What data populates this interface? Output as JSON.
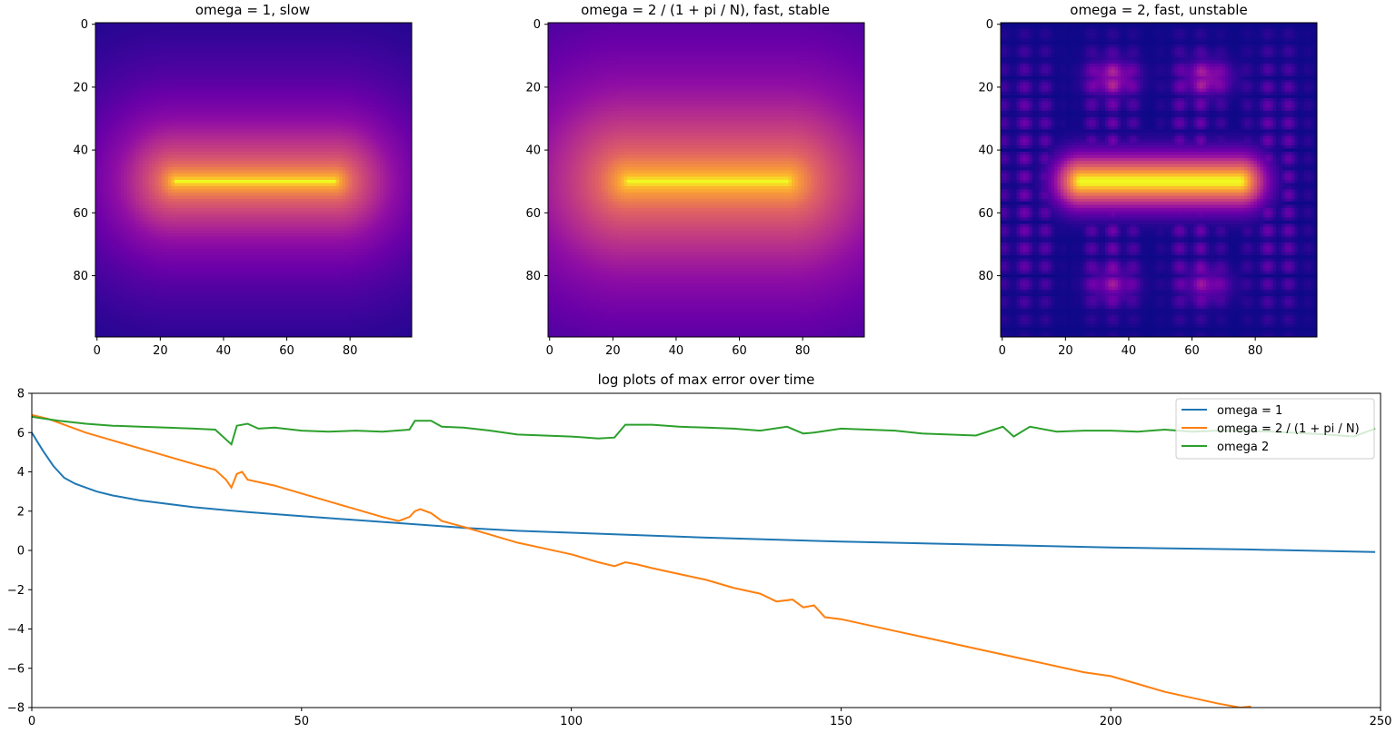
{
  "chart_data": [
    {
      "type": "heatmap",
      "title": "omega = 1, slow",
      "colormap": "plasma",
      "grid_size": 100,
      "xlim": [
        0,
        99
      ],
      "ylim": [
        99,
        0
      ],
      "x_ticks": [
        0,
        20,
        40,
        60,
        80
      ],
      "y_ticks": [
        0,
        20,
        40,
        60,
        80
      ],
      "source_row": 50,
      "source_cols": [
        25,
        75
      ],
      "pattern": "smooth",
      "spread": 15
    },
    {
      "type": "heatmap",
      "title": "omega = 2 / (1 + pi / N), fast, stable",
      "colormap": "plasma",
      "grid_size": 100,
      "xlim": [
        0,
        99
      ],
      "ylim": [
        99,
        0
      ],
      "x_ticks": [
        0,
        20,
        40,
        60,
        80
      ],
      "y_ticks": [
        0,
        20,
        40,
        60,
        80
      ],
      "source_row": 50,
      "source_cols": [
        25,
        75
      ],
      "pattern": "smooth",
      "spread": 24
    },
    {
      "type": "heatmap",
      "title": "omega = 2, fast, unstable",
      "colormap": "plasma",
      "grid_size": 100,
      "xlim": [
        0,
        99
      ],
      "ylim": [
        99,
        0
      ],
      "x_ticks": [
        0,
        20,
        40,
        60,
        80
      ],
      "y_ticks": [
        0,
        20,
        40,
        60,
        80
      ],
      "source_row": 50,
      "source_cols": [
        25,
        75
      ],
      "pattern": "oscillating",
      "spread": 6
    },
    {
      "type": "line",
      "title": "log plots of max error over time",
      "xlabel": "",
      "ylabel": "",
      "xlim": [
        0,
        250
      ],
      "ylim": [
        -8,
        8
      ],
      "x_ticks": [
        0,
        50,
        100,
        150,
        200,
        250
      ],
      "y_ticks": [
        -8,
        -6,
        -4,
        -2,
        0,
        2,
        4,
        6,
        8
      ],
      "legend_position": "top-right",
      "series": [
        {
          "name": "omega = 1",
          "color": "#1f77b4",
          "points": [
            [
              0,
              6.0
            ],
            [
              2,
              5.1
            ],
            [
              4,
              4.3
            ],
            [
              6,
              3.7
            ],
            [
              8,
              3.4
            ],
            [
              10,
              3.2
            ],
            [
              12,
              3.0
            ],
            [
              15,
              2.8
            ],
            [
              20,
              2.55
            ],
            [
              30,
              2.2
            ],
            [
              40,
              1.95
            ],
            [
              50,
              1.75
            ],
            [
              60,
              1.55
            ],
            [
              70,
              1.35
            ],
            [
              80,
              1.15
            ],
            [
              90,
              1.0
            ],
            [
              100,
              0.9
            ],
            [
              125,
              0.65
            ],
            [
              150,
              0.45
            ],
            [
              175,
              0.3
            ],
            [
              200,
              0.15
            ],
            [
              225,
              0.05
            ],
            [
              249,
              -0.08
            ]
          ]
        },
        {
          "name": "omega = 2 / (1 + pi / N)",
          "color": "#ff7f0e",
          "points": [
            [
              0,
              6.9
            ],
            [
              3,
              6.7
            ],
            [
              6,
              6.4
            ],
            [
              10,
              6.0
            ],
            [
              15,
              5.6
            ],
            [
              20,
              5.2
            ],
            [
              25,
              4.8
            ],
            [
              30,
              4.4
            ],
            [
              34,
              4.1
            ],
            [
              36,
              3.6
            ],
            [
              37,
              3.2
            ],
            [
              38,
              3.9
            ],
            [
              39,
              4.0
            ],
            [
              40,
              3.6
            ],
            [
              45,
              3.3
            ],
            [
              50,
              2.9
            ],
            [
              55,
              2.5
            ],
            [
              60,
              2.1
            ],
            [
              65,
              1.7
            ],
            [
              68,
              1.5
            ],
            [
              70,
              1.7
            ],
            [
              71,
              2.0
            ],
            [
              72,
              2.1
            ],
            [
              74,
              1.9
            ],
            [
              76,
              1.5
            ],
            [
              80,
              1.2
            ],
            [
              85,
              0.8
            ],
            [
              90,
              0.4
            ],
            [
              95,
              0.1
            ],
            [
              100,
              -0.2
            ],
            [
              105,
              -0.6
            ],
            [
              108,
              -0.8
            ],
            [
              110,
              -0.6
            ],
            [
              112,
              -0.7
            ],
            [
              115,
              -0.9
            ],
            [
              120,
              -1.2
            ],
            [
              125,
              -1.5
            ],
            [
              130,
              -1.9
            ],
            [
              135,
              -2.2
            ],
            [
              138,
              -2.6
            ],
            [
              141,
              -2.5
            ],
            [
              143,
              -2.9
            ],
            [
              145,
              -2.8
            ],
            [
              147,
              -3.4
            ],
            [
              150,
              -3.5
            ],
            [
              155,
              -3.8
            ],
            [
              160,
              -4.1
            ],
            [
              165,
              -4.4
            ],
            [
              170,
              -4.7
            ],
            [
              175,
              -5.0
            ],
            [
              180,
              -5.3
            ],
            [
              185,
              -5.6
            ],
            [
              190,
              -5.9
            ],
            [
              195,
              -6.2
            ],
            [
              200,
              -6.4
            ],
            [
              205,
              -6.8
            ],
            [
              210,
              -7.2
            ],
            [
              215,
              -7.5
            ],
            [
              220,
              -7.8
            ],
            [
              224,
              -8.0
            ],
            [
              226,
              -7.95
            ]
          ]
        },
        {
          "name": "omega 2",
          "color": "#2ca02c",
          "points": [
            [
              0,
              6.8
            ],
            [
              5,
              6.6
            ],
            [
              10,
              6.45
            ],
            [
              15,
              6.35
            ],
            [
              20,
              6.3
            ],
            [
              25,
              6.25
            ],
            [
              30,
              6.2
            ],
            [
              34,
              6.15
            ],
            [
              37,
              5.4
            ],
            [
              38,
              6.35
            ],
            [
              40,
              6.45
            ],
            [
              42,
              6.2
            ],
            [
              45,
              6.25
            ],
            [
              50,
              6.1
            ],
            [
              55,
              6.05
            ],
            [
              60,
              6.1
            ],
            [
              65,
              6.05
            ],
            [
              70,
              6.15
            ],
            [
              71,
              6.6
            ],
            [
              74,
              6.6
            ],
            [
              76,
              6.3
            ],
            [
              80,
              6.25
            ],
            [
              85,
              6.1
            ],
            [
              90,
              5.9
            ],
            [
              95,
              5.85
            ],
            [
              100,
              5.8
            ],
            [
              105,
              5.7
            ],
            [
              108,
              5.75
            ],
            [
              110,
              6.4
            ],
            [
              115,
              6.4
            ],
            [
              120,
              6.3
            ],
            [
              125,
              6.25
            ],
            [
              130,
              6.2
            ],
            [
              135,
              6.1
            ],
            [
              140,
              6.3
            ],
            [
              143,
              5.95
            ],
            [
              145,
              6.0
            ],
            [
              150,
              6.2
            ],
            [
              155,
              6.15
            ],
            [
              160,
              6.1
            ],
            [
              165,
              5.95
            ],
            [
              170,
              5.9
            ],
            [
              175,
              5.85
            ],
            [
              180,
              6.3
            ],
            [
              182,
              5.8
            ],
            [
              185,
              6.3
            ],
            [
              190,
              6.05
            ],
            [
              195,
              6.1
            ],
            [
              200,
              6.1
            ],
            [
              205,
              6.05
            ],
            [
              210,
              6.15
            ],
            [
              215,
              6.05
            ],
            [
              220,
              6.1
            ],
            [
              230,
              6.05
            ],
            [
              240,
              5.9
            ],
            [
              245,
              5.8
            ],
            [
              249,
              6.2
            ]
          ]
        }
      ]
    }
  ]
}
